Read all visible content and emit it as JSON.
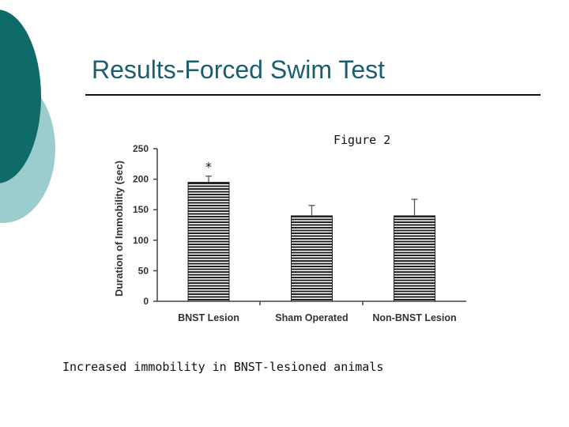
{
  "slide": {
    "title": "Results-Forced Swim Test",
    "figure_label": "Figure 2",
    "caption": "Increased immobility in BNST-lesioned animals"
  },
  "colors": {
    "title": "#1a5f6e",
    "deco_dark": "#0f6b68",
    "deco_light": "#9ccdce",
    "bar_stripe": "#222222"
  },
  "chart_data": {
    "type": "bar",
    "title": "",
    "xlabel": "",
    "ylabel": "Duration of Immobility (sec)",
    "categories": [
      "BNST Lesion",
      "Sham Operated",
      "Non-BNST Lesion"
    ],
    "values": [
      195,
      140,
      140
    ],
    "error_upper": [
      205,
      157,
      167
    ],
    "annotations": [
      {
        "category": "BNST Lesion",
        "text": "*"
      }
    ],
    "ylim": [
      0,
      250
    ],
    "yticks": [
      0,
      50,
      100,
      150,
      200,
      250
    ],
    "bar_fill": "horizontal stripes",
    "grid": false,
    "legend": "none"
  }
}
